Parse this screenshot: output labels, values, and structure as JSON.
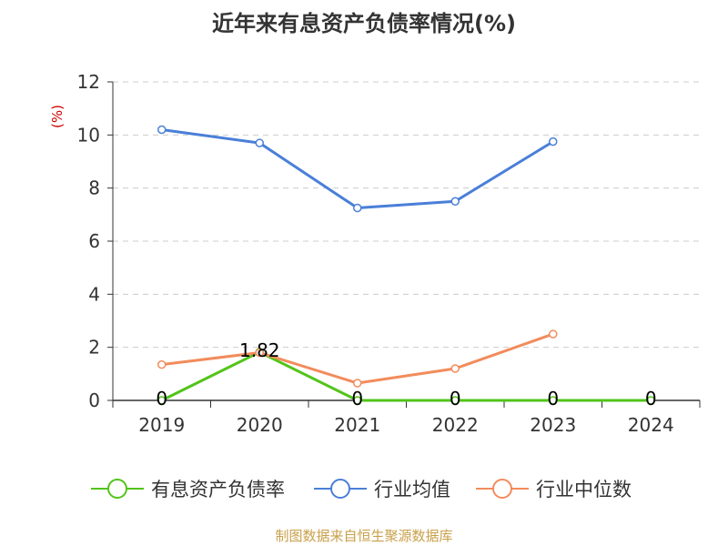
{
  "chart_data": {
    "type": "line",
    "title": "近年来有息资产负债率情况(%)",
    "ylabel": "(%)",
    "xlabel": "",
    "categories": [
      "2019",
      "2020",
      "2021",
      "2022",
      "2023",
      "2024"
    ],
    "ylim": [
      0,
      12
    ],
    "yticks": [
      "0",
      "2",
      "4",
      "6",
      "8",
      "10",
      "12"
    ],
    "grid": "horizontal dashed",
    "legend_position": "bottom",
    "series": [
      {
        "name": "有息资产负债率",
        "color": "#52c41a",
        "values": [
          0,
          1.82,
          0,
          0,
          0,
          0
        ],
        "labels": [
          "0",
          "1.82",
          "0",
          "0",
          "0",
          "0"
        ]
      },
      {
        "name": "行业均值",
        "color": "#4a7fd8",
        "values": [
          10.2,
          9.7,
          7.25,
          7.5,
          9.75,
          null
        ]
      },
      {
        "name": "行业中位数",
        "color": "#f28c5c",
        "values": [
          1.35,
          1.8,
          0.65,
          1.2,
          2.5,
          null
        ]
      }
    ]
  },
  "source": "制图数据来自恒生聚源数据库"
}
